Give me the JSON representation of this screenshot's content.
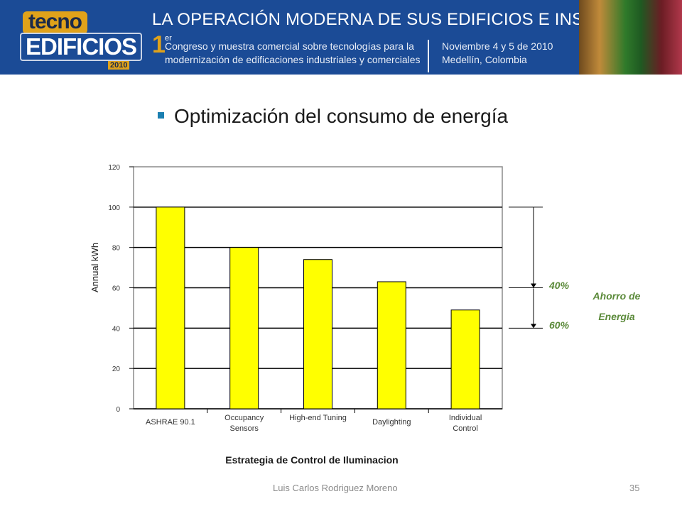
{
  "banner": {
    "logo_top": "tecno",
    "logo_main": "EDIFICIOS",
    "logo_year": "2010",
    "title": "LA OPERACIÓN MODERNA DE SUS EDIFICIOS E INSTALACIONES",
    "edition_number": "1",
    "edition_suffix": "er",
    "description": "Congreso y muestra comercial sobre tecnologías para la modernización de edificaciones industriales y comerciales",
    "date_line1": "Noviembre 4 y 5 de 2010",
    "date_line2": "Medellín, Colombia"
  },
  "slide": {
    "heading": "Optimización del consumo de energía"
  },
  "chart_data": {
    "type": "bar",
    "categories": [
      "ASHRAE 90.1",
      "Occupancy Sensors",
      "High-end Tuning",
      "Daylighting",
      "Individual Control"
    ],
    "values": [
      100,
      80,
      74,
      63,
      49
    ],
    "bar_color": "#ffff00",
    "ylabel": "Annual kWh",
    "xlabel": "Estrategia de Control de Iluminacion",
    "ylim": [
      0,
      120
    ],
    "yticks": [
      0,
      20,
      40,
      60,
      80,
      100,
      120
    ],
    "grid": true,
    "annotations": {
      "upper_percent": "40%",
      "lower_percent": "60%",
      "savings_label_line1": "Ahorro de",
      "savings_label_line2": "Energia",
      "bracket_values": [
        100,
        60,
        40
      ],
      "color": "#5b8a3a"
    }
  },
  "footer": {
    "author": "Luis Carlos Rodriguez Moreno",
    "page": "35"
  }
}
